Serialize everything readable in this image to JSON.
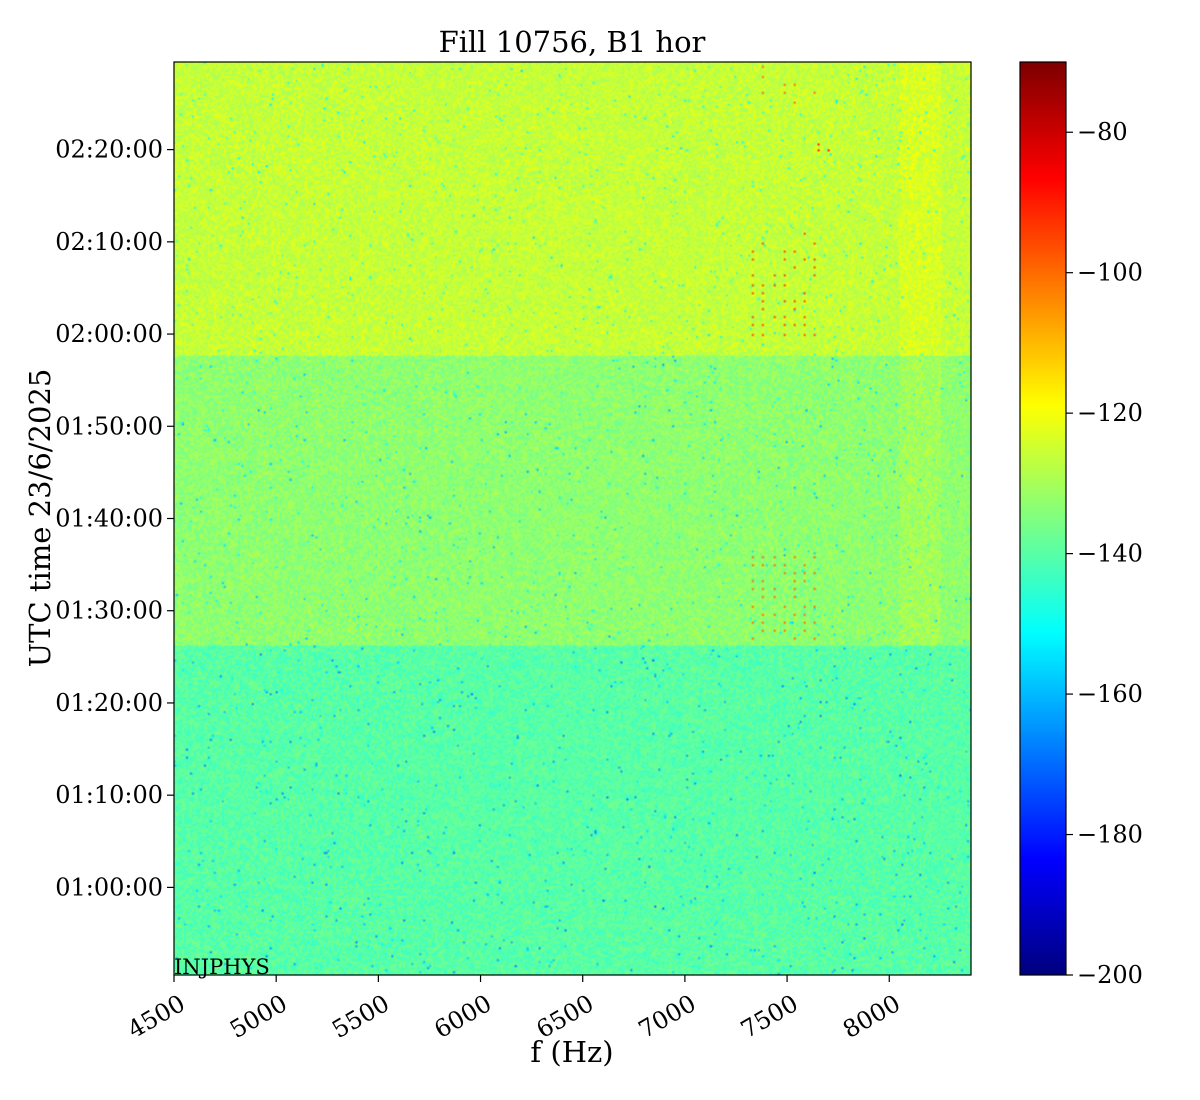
{
  "chart_data": {
    "type": "heatmap",
    "title": "Fill 10756, B1 hor",
    "xlabel": "f (Hz)",
    "ylabel": "UTC time 23/6/2025",
    "annotation": "INJPHYS",
    "x_range": [
      4500,
      8400
    ],
    "x_ticks": [
      4500,
      5000,
      5500,
      6000,
      6500,
      7000,
      7500,
      8000
    ],
    "y_range_minutes": [
      50.5,
      149.5
    ],
    "y_ticks": [
      {
        "label": "01:00:00",
        "minutes": 60
      },
      {
        "label": "01:10:00",
        "minutes": 70
      },
      {
        "label": "01:20:00",
        "minutes": 80
      },
      {
        "label": "01:30:00",
        "minutes": 90
      },
      {
        "label": "01:40:00",
        "minutes": 100
      },
      {
        "label": "01:50:00",
        "minutes": 110
      },
      {
        "label": "02:00:00",
        "minutes": 120
      },
      {
        "label": "02:10:00",
        "minutes": 130
      },
      {
        "label": "02:20:00",
        "minutes": 140
      }
    ],
    "colorbar": {
      "colormap": "jet",
      "range": [
        -200,
        -70
      ],
      "ticks": [
        -80,
        -100,
        -120,
        -140,
        -160,
        -180,
        -200
      ]
    },
    "bands": [
      {
        "start_minutes": 50.5,
        "end_minutes": 86.2,
        "level": -140
      },
      {
        "start_minutes": 86.2,
        "end_minutes": 117.7,
        "level": -133
      },
      {
        "start_minutes": 117.7,
        "end_minutes": 149.5,
        "level": -126
      }
    ],
    "features": [
      {
        "f_range": [
          7330,
          7650
        ],
        "minutes_range": [
          120.1,
          130.9
        ],
        "level": -95
      },
      {
        "f_range": [
          7330,
          7650
        ],
        "minutes_range": [
          87.0,
          96.0
        ],
        "level": -100
      },
      {
        "f_range": [
          7380,
          7650
        ],
        "minutes_range": [
          145.3,
          149.0
        ],
        "level": -100
      },
      {
        "f_range": [
          7650,
          7720
        ],
        "minutes_range": [
          140.0,
          140.6
        ],
        "level": -88
      }
    ]
  }
}
